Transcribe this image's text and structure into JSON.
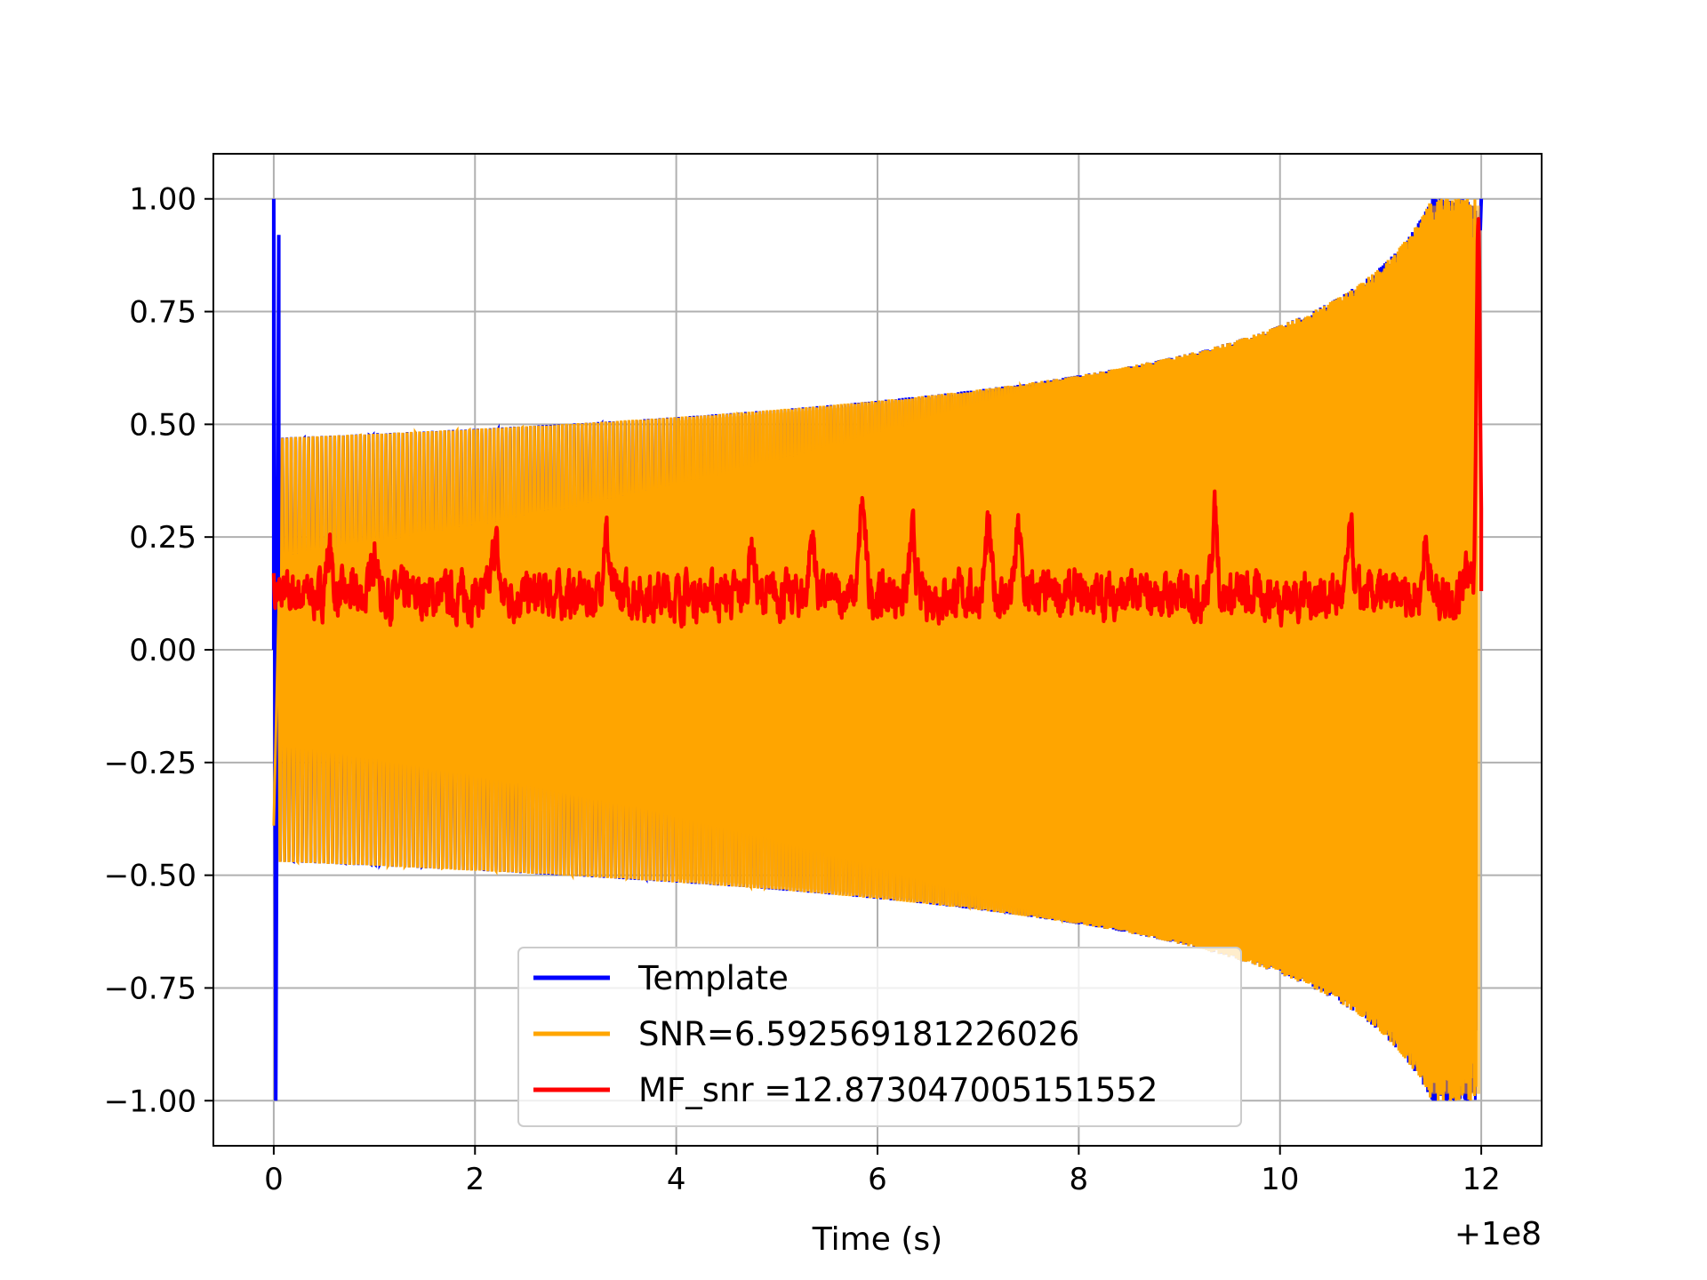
{
  "chart_data": {
    "type": "line",
    "title": "",
    "xlabel": "Time (s)",
    "ylabel": "",
    "x_offset_label": "+1e8",
    "xlim": [
      -0.6,
      12.6
    ],
    "ylim": [
      -1.1,
      1.1
    ],
    "xticks": [
      0,
      2,
      4,
      6,
      8,
      10,
      12
    ],
    "xtick_labels": [
      "0",
      "2",
      "4",
      "6",
      "8",
      "10",
      "12"
    ],
    "yticks": [
      1.0,
      0.75,
      0.5,
      0.25,
      0.0,
      -0.25,
      -0.5,
      -0.75,
      -1.0
    ],
    "ytick_labels": [
      "1.00",
      "0.75",
      "0.50",
      "0.25",
      "0.00",
      "−0.25",
      "−0.50",
      "−0.75",
      "−1.00"
    ],
    "grid": true,
    "legend_position": "lower-center",
    "series": [
      {
        "name": "Template",
        "color": "#0000ff",
        "description_values": {
          "x_start": 0.0,
          "x_end": 12.0,
          "initial_spike": [
            1.0,
            -1.0
          ],
          "envelope_start": 0.47,
          "envelope_end": 1.0
        }
      },
      {
        "name": "SNR=6.592569181226026",
        "color": "#ffa500",
        "description_values": {
          "x_start": 0.0,
          "x_end": 12.0,
          "envelope_start": 0.47,
          "envelope_end": 1.0,
          "start_value": -0.39
        }
      },
      {
        "name": "MF_snr =12.873047005151552",
        "color": "#ff0000",
        "description_values": {
          "x_start": 0.0,
          "x_end": 12.0,
          "baseline": 0.1,
          "peak": 1.0,
          "peak_x": 11.97
        }
      }
    ]
  }
}
